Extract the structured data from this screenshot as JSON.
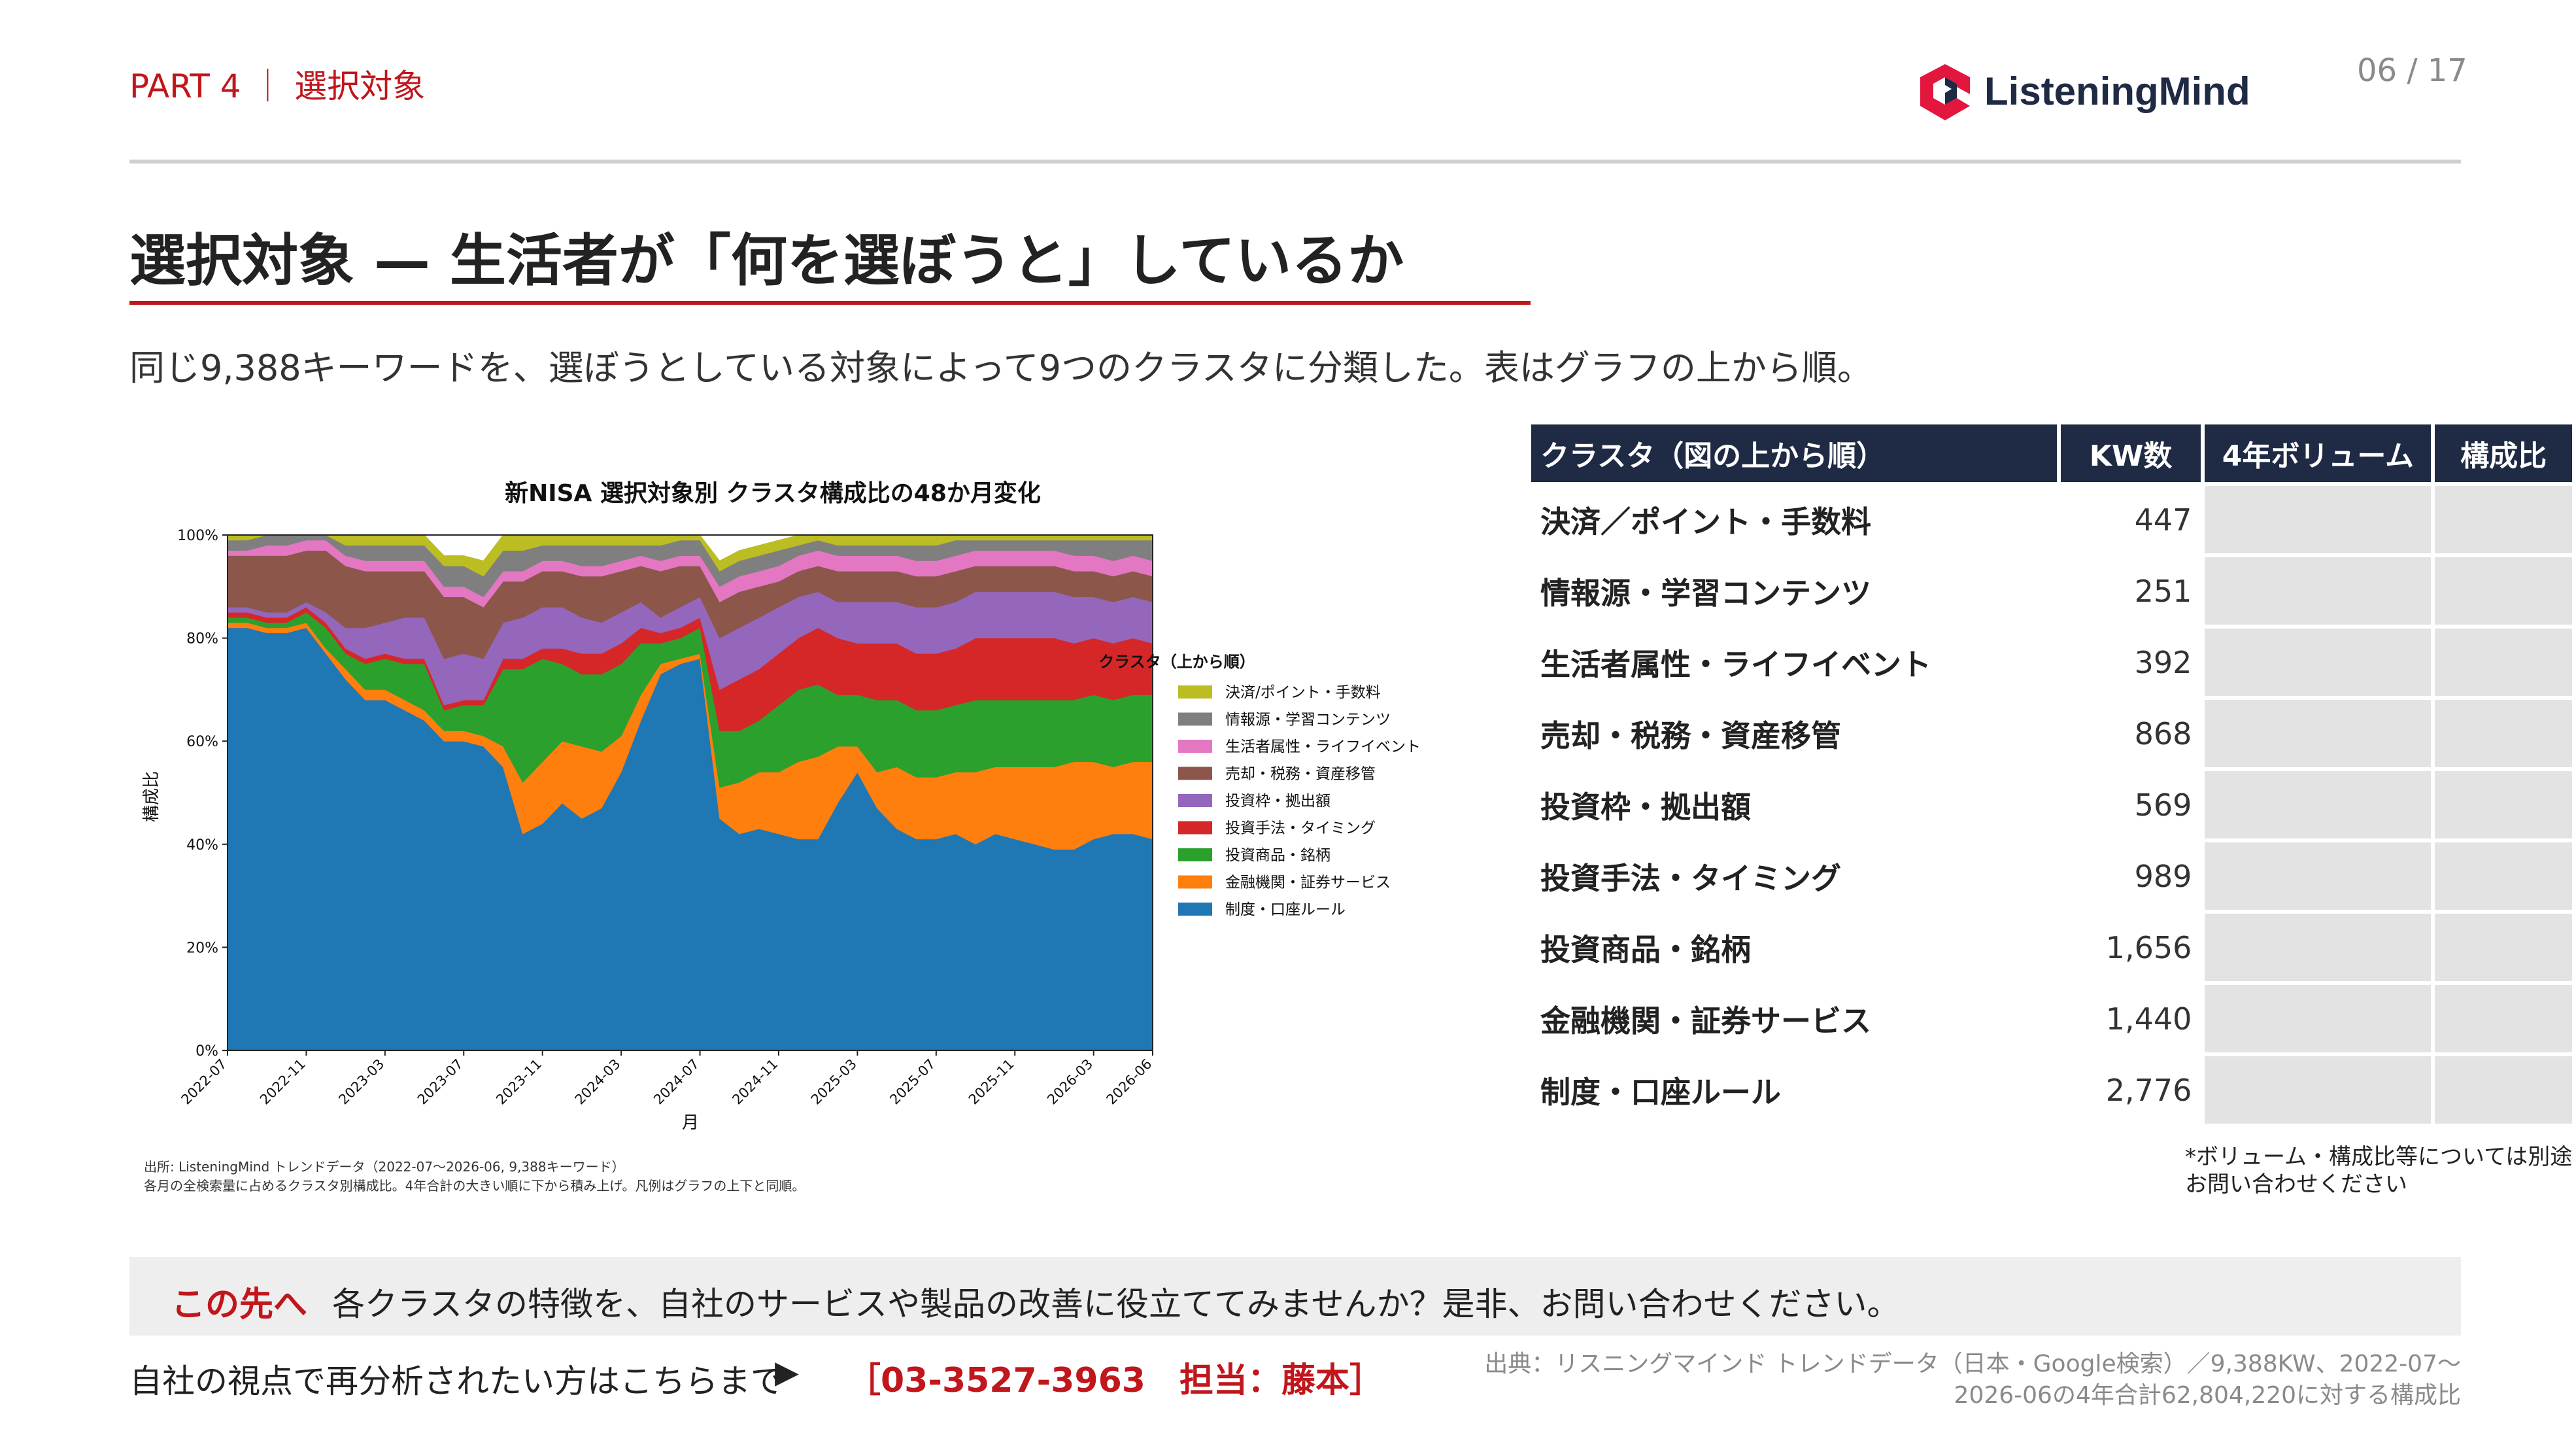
{
  "header": {
    "part": "PART 4 ｜ 選択対象",
    "logo_text": "ListeningMind",
    "page": "06 / 17"
  },
  "title": "選択対象 — 生活者が「何を選ぼうと」しているか",
  "lead": "同じ9,388キーワードを、選ぼうとしている対象によって9つのクラスタに分類した。表はグラフの上から順。",
  "colors": {
    "accent": "#c0161c",
    "table_header": "#1f2a44",
    "logo_red": "#e3173e",
    "logo_navy": "#1f2a44"
  },
  "chart_data": {
    "type": "area",
    "stacked": true,
    "title": "新NISA 選択対象別 クラスタ構成比の48か月変化",
    "xlabel": "月",
    "ylabel": "構成比",
    "ylim": [
      0,
      100
    ],
    "y_ticks": [
      "0%",
      "20%",
      "40%",
      "60%",
      "80%",
      "100%"
    ],
    "x_ticks": [
      "2022-07",
      "2022-11",
      "2023-03",
      "2023-07",
      "2023-11",
      "2024-03",
      "2024-07",
      "2024-11",
      "2025-03",
      "2025-07",
      "2025-11",
      "2026-03",
      "2026-06"
    ],
    "legend_title": "クラスタ（上から順）",
    "legend_position": "right",
    "grid": "horizontal dashed",
    "x": [
      "2022-07",
      "2022-08",
      "2022-09",
      "2022-10",
      "2022-11",
      "2022-12",
      "2023-01",
      "2023-02",
      "2023-03",
      "2023-04",
      "2023-05",
      "2023-06",
      "2023-07",
      "2023-08",
      "2023-09",
      "2023-10",
      "2023-11",
      "2023-12",
      "2024-01",
      "2024-02",
      "2024-03",
      "2024-04",
      "2024-05",
      "2024-06",
      "2024-07",
      "2024-08",
      "2024-09",
      "2024-10",
      "2024-11",
      "2024-12",
      "2025-01",
      "2025-02",
      "2025-03",
      "2025-04",
      "2025-05",
      "2025-06",
      "2025-07",
      "2025-08",
      "2025-09",
      "2025-10",
      "2025-11",
      "2025-12",
      "2026-01",
      "2026-02",
      "2026-03",
      "2026-04",
      "2026-05",
      "2026-06"
    ],
    "series": [
      {
        "name": "制度・口座ルール",
        "color": "#1f77b4",
        "values": [
          82,
          82,
          81,
          81,
          82,
          77,
          72,
          68,
          68,
          66,
          64,
          60,
          60,
          59,
          55,
          42,
          44,
          48,
          45,
          47,
          54,
          64,
          73,
          75,
          76,
          45,
          42,
          43,
          42,
          41,
          41,
          48,
          54,
          47,
          43,
          41,
          41,
          42,
          40,
          42,
          41,
          40,
          39,
          39,
          41,
          42,
          42,
          41
        ]
      },
      {
        "name": "金融機関・証券サービス",
        "color": "#ff7f0e",
        "values": [
          1,
          1,
          1,
          1,
          1,
          1,
          2,
          2,
          2,
          2,
          2,
          2,
          2,
          2,
          4,
          10,
          12,
          12,
          14,
          11,
          7,
          5,
          2,
          1,
          1,
          6,
          10,
          11,
          12,
          15,
          16,
          11,
          5,
          7,
          12,
          12,
          12,
          12,
          14,
          13,
          14,
          15,
          16,
          17,
          15,
          13,
          14,
          15
        ]
      },
      {
        "name": "投資商品・銘柄",
        "color": "#2ca02c",
        "values": [
          1,
          1,
          1,
          1,
          2,
          4,
          3,
          5,
          6,
          7,
          9,
          4,
          5,
          6,
          15,
          22,
          20,
          15,
          14,
          15,
          14,
          10,
          4,
          4,
          5,
          11,
          10,
          10,
          13,
          14,
          14,
          10,
          10,
          14,
          13,
          13,
          13,
          13,
          14,
          13,
          13,
          13,
          13,
          12,
          13,
          13,
          13,
          13
        ]
      },
      {
        "name": "投資手法・タイミング",
        "color": "#d62728",
        "values": [
          1,
          1,
          1,
          1,
          1,
          1,
          1,
          1,
          1,
          1,
          1,
          1,
          1,
          1,
          2,
          2,
          2,
          3,
          4,
          4,
          4,
          3,
          2,
          2,
          2,
          8,
          10,
          10,
          10,
          10,
          11,
          11,
          10,
          11,
          11,
          11,
          11,
          11,
          12,
          12,
          12,
          12,
          12,
          11,
          11,
          11,
          11,
          10
        ]
      },
      {
        "name": "投資枠・拠出額",
        "color": "#9467bd",
        "values": [
          1,
          1,
          1,
          1,
          1,
          2,
          4,
          6,
          6,
          8,
          8,
          9,
          9,
          8,
          7,
          8,
          8,
          8,
          7,
          6,
          6,
          5,
          3,
          4,
          4,
          10,
          10,
          10,
          9,
          8,
          7,
          7,
          8,
          8,
          8,
          9,
          9,
          9,
          9,
          9,
          9,
          9,
          9,
          9,
          8,
          8,
          8,
          8
        ]
      },
      {
        "name": "売却・税務・資産移管",
        "color": "#8c564b",
        "values": [
          10,
          10,
          11,
          11,
          10,
          12,
          12,
          11,
          10,
          9,
          9,
          12,
          11,
          10,
          8,
          7,
          7,
          7,
          8,
          9,
          8,
          7,
          9,
          8,
          6,
          7,
          7,
          6,
          5,
          5,
          5,
          6,
          6,
          6,
          6,
          6,
          6,
          6,
          5,
          5,
          5,
          5,
          5,
          5,
          5,
          5,
          5,
          5
        ]
      },
      {
        "name": "生活者属性・ライフイベント",
        "color": "#e377c2",
        "values": [
          1,
          1,
          2,
          2,
          2,
          2,
          2,
          2,
          2,
          2,
          2,
          2,
          2,
          2,
          2,
          2,
          2,
          2,
          2,
          2,
          2,
          2,
          2,
          2,
          2,
          3,
          3,
          3,
          3,
          3,
          3,
          3,
          3,
          3,
          3,
          3,
          3,
          3,
          3,
          3,
          3,
          3,
          3,
          3,
          3,
          3,
          3,
          3
        ]
      },
      {
        "name": "情報源・学習コンテンツ",
        "color": "#7f7f7f",
        "values": [
          2,
          2,
          2,
          2,
          1,
          1,
          2,
          3,
          3,
          3,
          3,
          4,
          4,
          4,
          4,
          4,
          3,
          3,
          4,
          4,
          3,
          2,
          3,
          3,
          3,
          3,
          3,
          3,
          3,
          2,
          2,
          2,
          2,
          2,
          2,
          3,
          3,
          3,
          2,
          2,
          2,
          2,
          2,
          3,
          3,
          4,
          3,
          4
        ]
      },
      {
        "name": "決済/ポイント・手数料",
        "color": "#bcbd22",
        "values": [
          1,
          1,
          0,
          0,
          0,
          0,
          2,
          2,
          2,
          2,
          2,
          2,
          2,
          3,
          3,
          3,
          2,
          2,
          2,
          2,
          2,
          2,
          2,
          1,
          1,
          2,
          2,
          2,
          2,
          2,
          1,
          2,
          2,
          2,
          2,
          2,
          2,
          1,
          1,
          1,
          1,
          1,
          1,
          1,
          1,
          1,
          1,
          1
        ]
      }
    ],
    "source_lines": [
      "出所: ListeningMind トレンドデータ（2022-07〜2026-06, 9,388キーワード）",
      "各月の全検索量に占めるクラスタ別構成比。4年合計の大きい順に下から積み上げ。凡例はグラフの上下と同順。"
    ]
  },
  "table": {
    "headers": [
      "クラスタ（図の上から順）",
      "KW数",
      "4年ボリューム",
      "構成比"
    ],
    "rows": [
      {
        "name": "決済／ポイント・手数料",
        "kw": "447"
      },
      {
        "name": "情報源・学習コンテンツ",
        "kw": "251"
      },
      {
        "name": "生活者属性・ライフイベント",
        "kw": "392"
      },
      {
        "name": "売却・税務・資産移管",
        "kw": "868"
      },
      {
        "name": "投資枠・拠出額",
        "kw": "569"
      },
      {
        "name": "投資手法・タイミング",
        "kw": "989"
      },
      {
        "name": "投資商品・銘柄",
        "kw": "1,656"
      },
      {
        "name": "金融機関・証券サービス",
        "kw": "1,440"
      },
      {
        "name": "制度・口座ルール",
        "kw": "2,776"
      }
    ],
    "note_lines": [
      "*ボリューム・構成比等については別途",
      "お問い合わせください"
    ]
  },
  "cta": {
    "head": "この先へ",
    "text": "各クラスタの特徴を、自社のサービスや製品の改善に役立ててみませんか？是非、お問い合わせください。"
  },
  "contact": {
    "text": "自社の視点で再分析されたい方はこちらまで",
    "arrow": "▶",
    "phone": "［03-3527-3963　担当：藤本］"
  },
  "footer": {
    "lines": [
      "出典：リスニングマインド トレンドデータ（日本・Google検索）／9,388KW、2022-07〜",
      "2026-06の4年合計62,804,220に対する構成比"
    ]
  }
}
